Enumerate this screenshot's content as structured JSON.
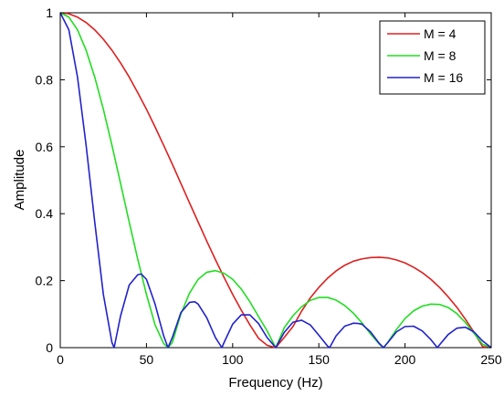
{
  "chart_data": {
    "type": "line",
    "title": "",
    "xlabel": "Frequency (Hz)",
    "ylabel": "Amplitude",
    "xlim": [
      0,
      250
    ],
    "ylim": [
      0,
      1
    ],
    "xticks": [
      0,
      50,
      100,
      150,
      200,
      250
    ],
    "yticks": [
      0,
      0.2,
      0.4,
      0.6,
      0.8,
      1
    ],
    "xtick_labels": [
      "0",
      "50",
      "100",
      "150",
      "200",
      "250"
    ],
    "ytick_labels": [
      "0",
      "0.2",
      "0.4",
      "0.6",
      "0.8",
      "1"
    ],
    "grid": false,
    "legend_position": "top-right",
    "series": [
      {
        "name": "M = 4",
        "color": "#dd2020",
        "x": [
          0,
          5,
          10,
          15,
          20,
          25,
          30,
          35,
          40,
          45,
          50,
          55,
          60,
          65,
          70,
          75,
          80,
          85,
          90,
          95,
          100,
          105,
          110,
          115,
          120,
          125,
          130,
          135,
          140,
          145,
          150,
          155,
          160,
          165,
          170,
          175,
          180,
          185,
          190,
          195,
          200,
          205,
          210,
          215,
          220,
          225,
          230,
          235,
          240,
          245,
          250
        ],
        "y": [
          1.0,
          0.997,
          0.987,
          0.971,
          0.949,
          0.921,
          0.888,
          0.85,
          0.808,
          0.761,
          0.712,
          0.659,
          0.604,
          0.548,
          0.49,
          0.432,
          0.375,
          0.318,
          0.263,
          0.21,
          0.159,
          0.112,
          0.068,
          0.028,
          0.007,
          0.0,
          0.031,
          0.063,
          0.109,
          0.148,
          0.18,
          0.207,
          0.229,
          0.246,
          0.258,
          0.265,
          0.269,
          0.27,
          0.268,
          0.262,
          0.253,
          0.24,
          0.224,
          0.204,
          0.18,
          0.152,
          0.121,
          0.085,
          0.046,
          0.003,
          0.0
        ]
      },
      {
        "name": "M = 8",
        "color": "#22dd22",
        "x": [
          0,
          5,
          10,
          15,
          20,
          25,
          30,
          35,
          40,
          45,
          50,
          55,
          60,
          62.5,
          65,
          70,
          75,
          80,
          85,
          90,
          95,
          100,
          105,
          110,
          115,
          120,
          125,
          130,
          135,
          140,
          145,
          150,
          155,
          160,
          165,
          170,
          175,
          180,
          185,
          187.5,
          190,
          195,
          200,
          205,
          210,
          215,
          220,
          225,
          230,
          235,
          240,
          245,
          250
        ],
        "y": [
          1.0,
          0.987,
          0.949,
          0.888,
          0.808,
          0.712,
          0.604,
          0.49,
          0.375,
          0.263,
          0.159,
          0.068,
          0.012,
          0.0,
          0.015,
          0.101,
          0.163,
          0.204,
          0.225,
          0.23,
          0.222,
          0.204,
          0.175,
          0.137,
          0.093,
          0.05,
          0.0,
          0.06,
          0.095,
          0.122,
          0.141,
          0.15,
          0.15,
          0.142,
          0.126,
          0.103,
          0.074,
          0.041,
          0.011,
          0.0,
          0.016,
          0.054,
          0.087,
          0.11,
          0.124,
          0.13,
          0.129,
          0.12,
          0.102,
          0.075,
          0.043,
          0.01,
          0.0
        ]
      },
      {
        "name": "M = 16",
        "color": "#2222cc",
        "x": [
          0,
          5,
          10,
          15,
          20,
          25,
          30,
          31.25,
          35,
          40,
          45,
          47,
          50,
          55,
          60,
          62.5,
          65,
          70,
          75,
          78,
          80,
          85,
          90,
          93.75,
          95,
          100,
          105,
          110,
          115,
          120,
          125,
          130,
          135,
          140,
          145,
          150,
          155,
          156.25,
          160,
          165,
          170,
          173,
          175,
          180,
          185,
          187.5,
          190,
          195,
          200,
          205,
          210,
          215,
          218.75,
          220,
          225,
          230,
          235,
          240,
          245,
          250
        ],
        "y": [
          1.0,
          0.949,
          0.808,
          0.604,
          0.375,
          0.159,
          0.015,
          0.0,
          0.095,
          0.187,
          0.218,
          0.22,
          0.204,
          0.13,
          0.035,
          0.0,
          0.03,
          0.105,
          0.135,
          0.137,
          0.13,
          0.089,
          0.03,
          0.0,
          0.015,
          0.07,
          0.098,
          0.098,
          0.072,
          0.03,
          0.0,
          0.046,
          0.076,
          0.082,
          0.068,
          0.037,
          0.005,
          0.0,
          0.035,
          0.064,
          0.073,
          0.072,
          0.07,
          0.047,
          0.013,
          0.0,
          0.015,
          0.047,
          0.063,
          0.064,
          0.05,
          0.024,
          0.0,
          0.008,
          0.039,
          0.058,
          0.061,
          0.047,
          0.02,
          0.0
        ]
      }
    ]
  }
}
